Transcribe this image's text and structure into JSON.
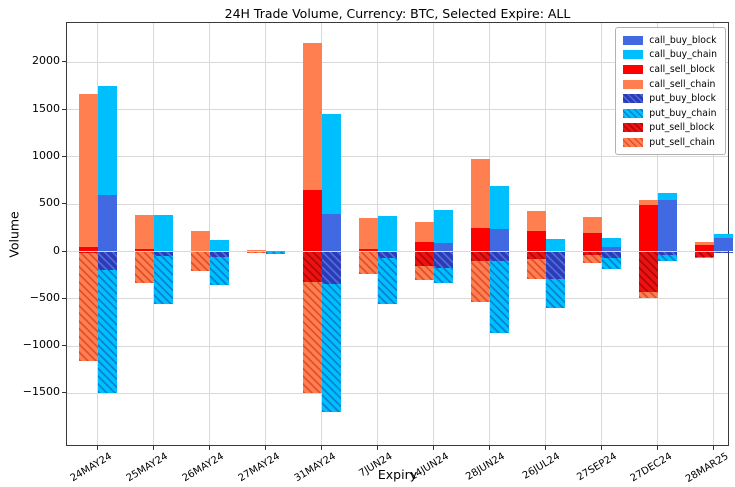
{
  "title": "24H Trade Volume, Currency: BTC, Selected Expire: ALL",
  "chart_data": {
    "type": "bar",
    "stacked": true,
    "grouped": "two bars per expiry: left=sell stack, right=buy stack; calls positive, puts negative",
    "title": "24H Trade Volume, Currency: BTC, Selected Expire: ALL",
    "xlabel": "Expiry",
    "ylabel": "Volume",
    "ylim": [
      -2070,
      2420
    ],
    "yticks": [
      2000,
      1500,
      1000,
      500,
      0,
      -500,
      -1000,
      -1500
    ],
    "grid": true,
    "legend_position": "upper right",
    "colors": {
      "grid": "#d9d9d9",
      "axis": "#3a3a3a",
      "call_buy_block": "#4169e1",
      "call_buy_chain": "#00bfff",
      "call_sell_block": "#fe0000",
      "call_sell_chain": "#ff7f50",
      "put_buy_block": "#2b3cb8",
      "put_buy_chain": "#00bfff",
      "put_sell_block": "#ee1111",
      "put_sell_chain": "#ff7f50"
    },
    "categories": [
      "24MAY24",
      "25MAY24",
      "26MAY24",
      "27MAY24",
      "31MAY24",
      "7JUN24",
      "14JUN24",
      "28JUN24",
      "26JUL24",
      "27SEP24",
      "27DEC24",
      "28MAR25"
    ],
    "series": [
      {
        "name": "call_buy_block",
        "side": "buy",
        "sign": 1,
        "color": "#4169e1",
        "hatch": false,
        "hatch_color": "",
        "values": [
          600,
          0,
          0,
          0,
          400,
          0,
          90,
          240,
          0,
          50,
          540,
          140
        ]
      },
      {
        "name": "call_buy_chain",
        "side": "buy",
        "sign": 1,
        "color": "#00bfff",
        "hatch": false,
        "hatch_color": "",
        "values": [
          1150,
          390,
          120,
          10,
          1050,
          370,
          350,
          450,
          130,
          90,
          80,
          40
        ]
      },
      {
        "name": "call_sell_block",
        "side": "sell",
        "sign": 1,
        "color": "#fe0000",
        "hatch": false,
        "hatch_color": "",
        "values": [
          50,
          30,
          0,
          0,
          650,
          30,
          100,
          250,
          220,
          200,
          490,
          70
        ]
      },
      {
        "name": "call_sell_chain",
        "side": "sell",
        "sign": 1,
        "color": "#ff7f50",
        "hatch": false,
        "hatch_color": "",
        "values": [
          1620,
          360,
          220,
          20,
          1550,
          320,
          210,
          730,
          210,
          160,
          50,
          30
        ]
      },
      {
        "name": "put_buy_block",
        "side": "buy",
        "sign": -1,
        "color": "#2b3cb8",
        "hatch": true,
        "hatch_color": "rgba(130,160,255,0.45)",
        "values": [
          -200,
          -50,
          -60,
          0,
          -340,
          -70,
          -170,
          -100,
          -290,
          -70,
          -40,
          -20
        ]
      },
      {
        "name": "put_buy_chain",
        "side": "buy",
        "sign": -1,
        "color": "#00bfff",
        "hatch": true,
        "hatch_color": "rgba(10,80,165,0.55)",
        "values": [
          -1300,
          -510,
          -290,
          -30,
          -1360,
          -480,
          -160,
          -760,
          -310,
          -120,
          -60,
          0
        ]
      },
      {
        "name": "put_sell_block",
        "side": "sell",
        "sign": -1,
        "color": "#ee1111",
        "hatch": true,
        "hatch_color": "rgba(110,0,0,0.5)",
        "values": [
          -20,
          0,
          0,
          0,
          -320,
          0,
          -150,
          -100,
          -80,
          -40,
          -430,
          -60
        ]
      },
      {
        "name": "put_sell_chain",
        "side": "sell",
        "sign": -1,
        "color": "#ff7f50",
        "hatch": true,
        "hatch_color": "rgba(200,40,20,0.55)",
        "values": [
          -1140,
          -330,
          -210,
          -15,
          -1180,
          -240,
          -150,
          -430,
          -210,
          -80,
          -60,
          -10
        ]
      }
    ]
  }
}
